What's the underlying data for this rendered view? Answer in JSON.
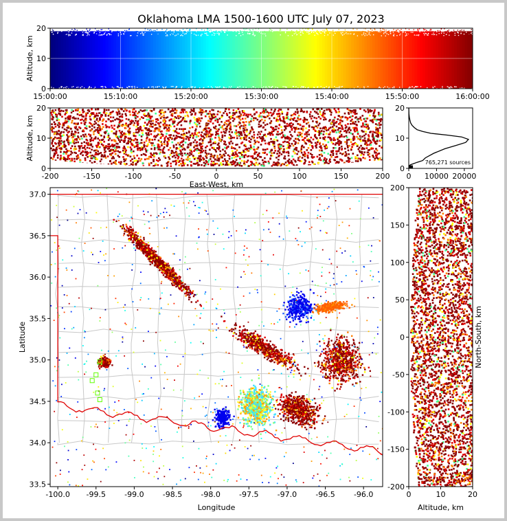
{
  "chart_data": [
    {
      "type": "scatter",
      "panel": "altitude-time",
      "title": "Oklahoma LMA 1500-1600 UTC July 07, 2023",
      "xlabel": "",
      "ylabel": "Altitude, km",
      "x_ticks": [
        "15:00:00",
        "15:10:00",
        "15:20:00",
        "15:30:00",
        "15:40:00",
        "15:50:00",
        "16:00:00"
      ],
      "xlim": [
        "15:00:00",
        "16:00:00"
      ],
      "ylim": [
        0,
        20
      ],
      "y_ticks": [
        0,
        10,
        20
      ],
      "grid": true,
      "colormap": "jet (time)"
    },
    {
      "type": "scatter",
      "panel": "altitude-eastwest",
      "xlabel": "East-West, km",
      "ylabel": "Altitude, km",
      "xlim": [
        -200,
        200
      ],
      "x_ticks": [
        -200,
        -150,
        -100,
        -50,
        0,
        50,
        100,
        150,
        200
      ],
      "ylim": [
        0,
        20
      ],
      "y_ticks": [
        0,
        10,
        20
      ]
    },
    {
      "type": "line",
      "panel": "altitude-histogram",
      "xlim": [
        0,
        23000
      ],
      "x_ticks": [
        0,
        10000,
        20000
      ],
      "ylim": [
        0,
        20
      ],
      "y_ticks": [
        0,
        10,
        20
      ],
      "annotation": "765,271 sources",
      "x": [
        0,
        150,
        600,
        1500,
        3000,
        5000,
        6000,
        9000,
        13000,
        17000,
        20500,
        21500,
        19000,
        14000,
        8000,
        5000,
        3000,
        2000,
        1200,
        700,
        400,
        200,
        80,
        20,
        0
      ],
      "y": [
        0.5,
        0.9,
        1.2,
        1.5,
        2.0,
        2.6,
        3.5,
        5.0,
        6.5,
        7.6,
        8.6,
        9.6,
        10.4,
        11.0,
        11.6,
        12.2,
        12.8,
        13.5,
        14.2,
        15.0,
        16.0,
        17.0,
        18.0,
        19.5,
        20.0
      ]
    },
    {
      "type": "scatter",
      "panel": "map",
      "xlabel": "Longitude",
      "ylabel": "Latitude",
      "xlim": [
        -100.1,
        -95.75
      ],
      "x_ticks": [
        -100.0,
        -99.5,
        -99.0,
        -98.5,
        -98.0,
        -97.5,
        -97.0,
        -96.5,
        -96.0
      ],
      "ylim": [
        33.47,
        37.08
      ],
      "y_ticks": [
        33.5,
        34.0,
        34.5,
        35.0,
        35.5,
        36.0,
        36.5,
        37.0
      ],
      "stations": [
        [
          -99.45,
          34.98
        ],
        [
          -99.5,
          34.82
        ],
        [
          -99.55,
          34.75
        ],
        [
          -99.48,
          34.6
        ],
        [
          -99.45,
          34.52
        ]
      ]
    },
    {
      "type": "scatter",
      "panel": "northsouth-altitude",
      "xlabel": "Altitude, km",
      "ylabel": "North-South, km",
      "xlim": [
        0,
        20
      ],
      "x_ticks": [
        0,
        10,
        20
      ],
      "ylim": [
        -200,
        200
      ],
      "y_ticks": [
        -200,
        -150,
        -100,
        -50,
        0,
        50,
        100,
        150,
        200
      ]
    }
  ],
  "colors": {
    "jet": [
      "#00007f",
      "#0000ff",
      "#007fff",
      "#00ffff",
      "#7fff7f",
      "#ffff00",
      "#ff7f00",
      "#ff0000",
      "#7f0000"
    ],
    "state_border": "#e00000",
    "county_border": "#c8c8c8"
  }
}
